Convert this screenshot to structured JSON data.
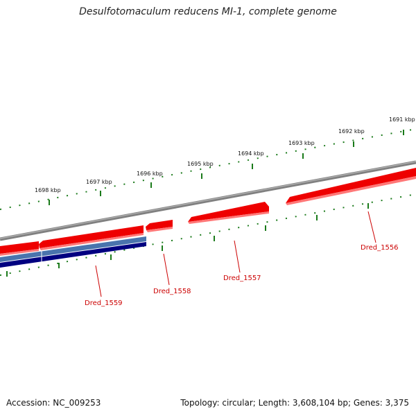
{
  "title": "Desulfotomaculum reducens MI-1, complete genome",
  "footer": {
    "accession": "Accession: NC_009253",
    "summary": "Topology: circular; Length: 3,608,104 bp; Genes: 3,375"
  },
  "colors": {
    "backbone": "#808080",
    "forward_gene": "#ee0000",
    "forward_gene_light": "#ff7777",
    "reverse_gene_dark": "#000080",
    "reverse_gene_mid": "#4a74ad",
    "tick": "#1a7a1a",
    "gene_label": "#cc0000"
  },
  "scale": {
    "ticks": [
      "1691 kbp",
      "1692 kbp",
      "1693 kbp",
      "1694 kbp",
      "1695 kbp",
      "1696 kbp",
      "1697 kbp",
      "1698 kbp"
    ]
  },
  "gene_labels": [
    "Dred_1556",
    "Dred_1557",
    "Dred_1558",
    "Dred_1559"
  ]
}
